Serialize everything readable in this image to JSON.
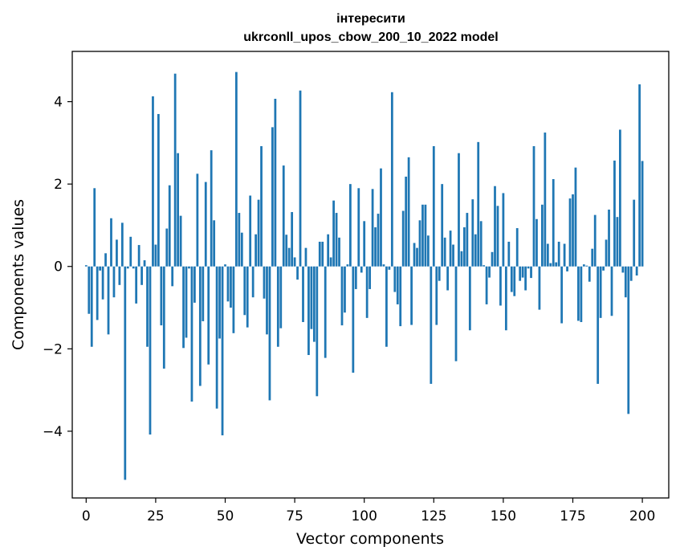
{
  "chart_data": {
    "type": "bar",
    "title_line1": "інтересити",
    "title_line2": "ukrconll_upos_cbow_200_10_2022 model",
    "xlabel": "Vector components",
    "ylabel": "Components values",
    "xlim": [
      -5,
      209.5
    ],
    "ylim": [
      -5.62,
      5.22
    ],
    "xticks": [
      0,
      25,
      50,
      75,
      100,
      125,
      150,
      175,
      200
    ],
    "xtick_labels": [
      "0",
      "25",
      "50",
      "75",
      "100",
      "125",
      "150",
      "175",
      "200"
    ],
    "yticks": [
      -4,
      -2,
      0,
      2,
      4
    ],
    "ytick_labels": [
      "−4",
      "−2",
      "0",
      "2",
      "4"
    ],
    "bar_color": "#1f77b4",
    "values": [
      0.03,
      -1.15,
      -1.95,
      1.9,
      -1.3,
      -0.1,
      -0.8,
      0.32,
      -1.65,
      1.17,
      -0.75,
      0.65,
      -0.45,
      1.06,
      -5.18,
      -0.05,
      0.72,
      -0.05,
      -0.9,
      0.52,
      -0.45,
      0.15,
      -1.95,
      -4.08,
      4.13,
      0.53,
      3.7,
      -1.43,
      -2.48,
      0.92,
      1.97,
      -0.48,
      4.68,
      2.75,
      1.23,
      -1.98,
      -1.73,
      -0.05,
      -3.28,
      -0.88,
      2.25,
      -2.9,
      -1.33,
      2.05,
      -2.38,
      2.82,
      1.12,
      -3.45,
      -1.75,
      -4.1,
      0.05,
      -0.85,
      -1.0,
      -1.62,
      4.72,
      1.3,
      0.82,
      -1.18,
      -1.48,
      1.72,
      -0.75,
      0.78,
      1.62,
      2.92,
      -0.78,
      -1.65,
      -3.25,
      3.38,
      4.07,
      -1.95,
      -1.5,
      2.45,
      0.77,
      0.45,
      1.32,
      0.22,
      -0.32,
      4.27,
      -1.35,
      0.45,
      -2.15,
      -1.52,
      -1.83,
      -3.15,
      0.6,
      0.6,
      -2.22,
      0.78,
      0.22,
      1.6,
      1.3,
      0.7,
      -1.43,
      -1.12,
      0.05,
      2.0,
      -2.58,
      -0.55,
      1.9,
      -0.15,
      1.1,
      -1.25,
      -0.55,
      1.88,
      0.95,
      1.28,
      2.38,
      0.05,
      -1.95,
      -0.08,
      4.23,
      -0.62,
      -0.92,
      -1.45,
      1.35,
      2.18,
      2.65,
      -1.42,
      0.57,
      0.45,
      1.12,
      1.5,
      1.5,
      0.75,
      -2.85,
      2.92,
      -1.42,
      -0.35,
      2.0,
      0.7,
      -0.58,
      0.87,
      0.53,
      -2.3,
      2.75,
      0.37,
      0.95,
      1.3,
      -1.55,
      1.63,
      0.78,
      3.02,
      1.1,
      0.03,
      -0.92,
      -0.27,
      0.35,
      1.95,
      1.47,
      -0.95,
      1.78,
      -1.55,
      0.6,
      -0.62,
      -0.72,
      0.93,
      -0.35,
      -0.27,
      -0.58,
      -0.05,
      -0.28,
      2.92,
      1.15,
      -1.05,
      1.5,
      3.25,
      0.55,
      0.08,
      2.12,
      0.1,
      0.6,
      -1.38,
      0.55,
      -0.12,
      1.65,
      1.75,
      2.4,
      -1.32,
      -1.35,
      0.05,
      0.02,
      -0.37,
      0.43,
      1.25,
      -2.85,
      -1.25,
      -0.1,
      0.65,
      1.38,
      -1.2,
      2.57,
      1.2,
      3.32,
      -0.15,
      -0.75,
      -3.58,
      -0.35,
      1.62,
      -0.22,
      4.42,
      2.56
    ]
  }
}
